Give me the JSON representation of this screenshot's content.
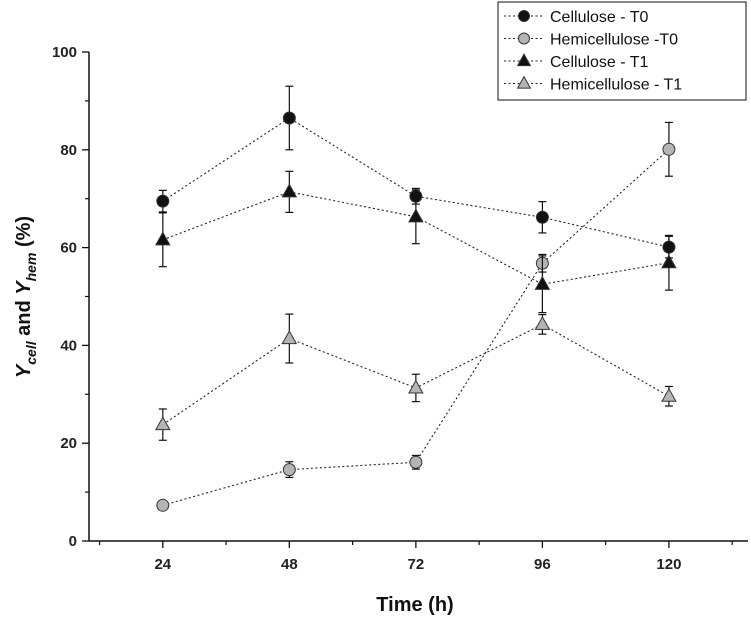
{
  "chart_data": {
    "type": "line",
    "title": "",
    "xlabel": "Time (h)",
    "ylabel": {
      "prefix1": "Y",
      "sub1": "cell",
      "middle": " and ",
      "prefix2": "Y",
      "sub2": "hem",
      "suffix": " (%)"
    },
    "x": [
      24,
      48,
      72,
      96,
      120
    ],
    "x_tick_labels": [
      "24",
      "48",
      "72",
      "96",
      "120"
    ],
    "xlim": [
      10,
      135
    ],
    "ylim": [
      0,
      100
    ],
    "y_ticks": [
      0,
      20,
      40,
      60,
      80,
      100
    ],
    "y_tick_labels": [
      "0",
      "20",
      "40",
      "60",
      "80",
      "100"
    ],
    "legend_position": "top-right",
    "series": [
      {
        "name": "Cellulose - T0",
        "marker": "circle",
        "color": "#111111",
        "values": [
          69.5,
          86.5,
          70.5,
          66.2,
          60.1
        ],
        "errors": [
          2.2,
          6.5,
          1.6,
          3.2,
          2.2
        ]
      },
      {
        "name": "Hemicellulose -T0",
        "marker": "circle",
        "color": "#b4b4b4",
        "values": [
          7.3,
          14.6,
          16.1,
          56.8,
          80.1
        ],
        "errors": [
          0.4,
          1.6,
          1.4,
          1.8,
          5.5
        ]
      },
      {
        "name": "Cellulose - T1",
        "marker": "triangle",
        "color": "#111111",
        "values": [
          61.6,
          71.4,
          66.3,
          52.5,
          56.9
        ],
        "errors": [
          5.5,
          4.2,
          5.5,
          5.8,
          5.6
        ]
      },
      {
        "name": "Hemicellulose - T1",
        "marker": "triangle",
        "color": "#b4b4b4",
        "values": [
          23.8,
          41.4,
          31.3,
          44.3,
          29.6
        ],
        "errors": [
          3.2,
          5.0,
          2.8,
          2.0,
          2.0
        ]
      }
    ]
  }
}
